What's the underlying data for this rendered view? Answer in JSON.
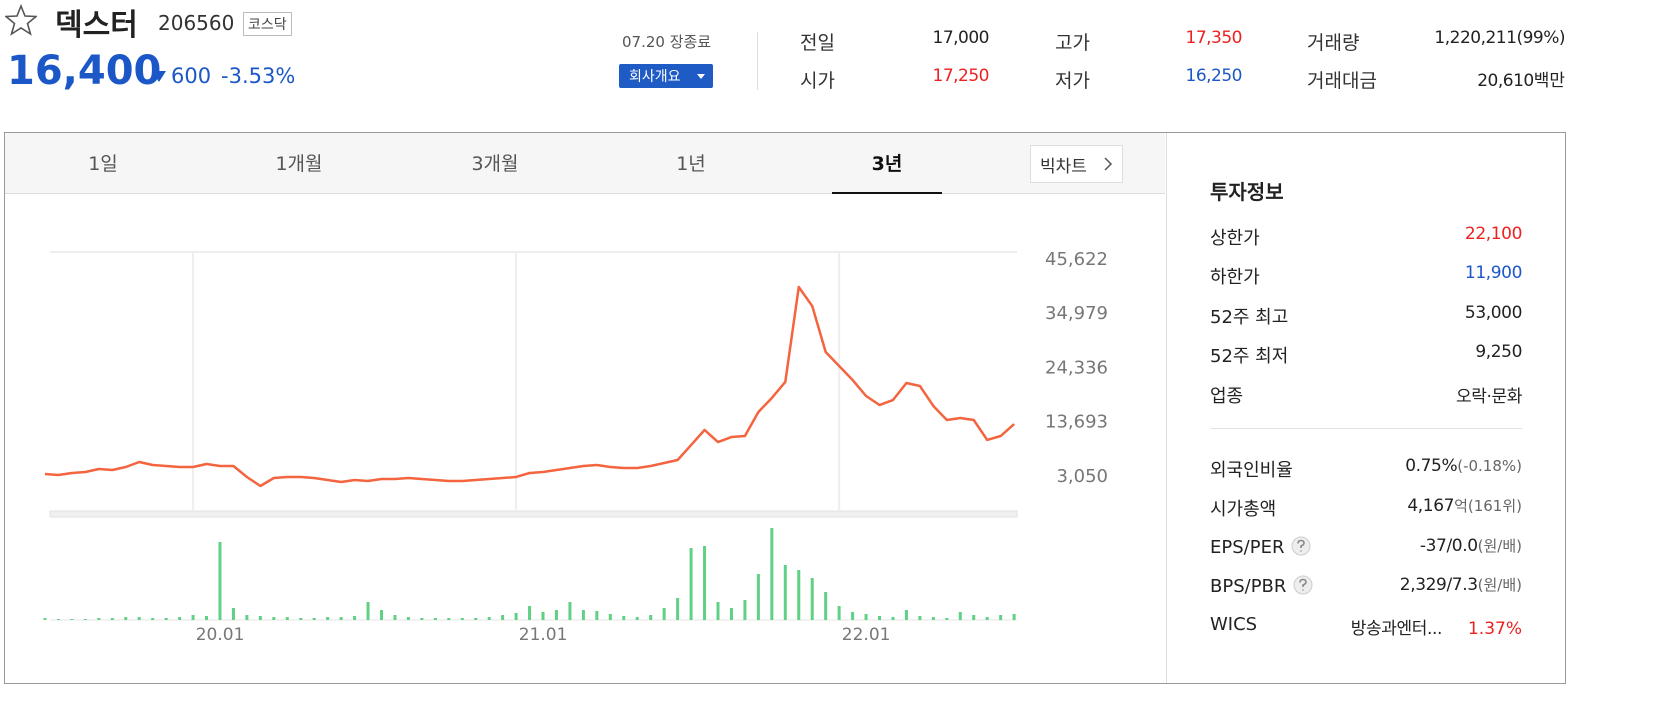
{
  "header": {
    "name": "덱스터",
    "code": "206560",
    "market": "코스닥",
    "price": "16,400",
    "change": "600",
    "change_rate": "-3.53%",
    "status": "07.20 장종료",
    "company_button": "회사개요",
    "color": "#1b57c7"
  },
  "summary": [
    {
      "label": "전일",
      "value": "17,000"
    },
    {
      "label": "시가",
      "value": "17,250",
      "color": "#ee2020"
    },
    {
      "label": "고가",
      "value": "17,350",
      "color": "#ee2020"
    },
    {
      "label": "저가",
      "value": "16,250",
      "color": "#1b57c7"
    },
    {
      "label": "거래량",
      "value": "1,220,211(99%)"
    },
    {
      "label": "거래대금",
      "value": "20,610",
      "unit": "백만"
    }
  ],
  "tabs": [
    "1일",
    "1개월",
    "3개월",
    "1년",
    "3년"
  ],
  "selected_tab": 4,
  "big_chart": "빅차트",
  "chart_data": {
    "type": "line",
    "color": "#f4643f",
    "categories": [
      null,
      null,
      null,
      null,
      null,
      null,
      null,
      null,
      null,
      null,
      null,
      "20.01",
      null,
      null,
      null,
      null,
      null,
      null,
      null,
      null,
      null,
      null,
      null,
      null,
      null,
      null,
      null,
      null,
      null,
      null,
      null,
      null,
      null,
      null,
      null,
      "21.01",
      null,
      null,
      null,
      null,
      null,
      null,
      null,
      null,
      null,
      null,
      null,
      null,
      null,
      null,
      null,
      null,
      null,
      null,
      null,
      null,
      null,
      null,
      null,
      "22.01",
      null,
      null,
      null,
      null,
      null,
      null,
      null,
      null,
      null,
      null,
      null,
      null,
      null
    ],
    "values": [
      3640,
      3440,
      3830,
      4030,
      4620,
      4420,
      5010,
      5990,
      5400,
      5200,
      5010,
      5010,
      5600,
      5200,
      5200,
      3050,
      1280,
      2850,
      3050,
      3050,
      2850,
      2460,
      2070,
      2460,
      2260,
      2660,
      2660,
      2850,
      2660,
      2460,
      2260,
      2260,
      2460,
      2660,
      2850,
      3050,
      3830,
      4030,
      4420,
      4810,
      5200,
      5400,
      5010,
      4810,
      4810,
      5200,
      5790,
      6380,
      9320,
      12270,
      9910,
      10890,
      11090,
      15800,
      18550,
      21690,
      40320,
      36590,
      27570,
      24820,
      22080,
      18940,
      17170,
      18150,
      21490,
      20900,
      16980,
      14230,
      14620,
      14230,
      10310,
      11090,
      13440
    ],
    "ylim": [
      -3428,
      47192
    ],
    "yticks": [
      {
        "value": 45622,
        "label": "45,622"
      },
      {
        "value": 34979,
        "label": "34,979"
      },
      {
        "value": 24336,
        "label": "24,336"
      },
      {
        "value": 13693,
        "label": "13,693"
      },
      {
        "value": 3050,
        "label": "3,050"
      }
    ],
    "xgrid": true,
    "volume_values": [
      2,
      1,
      1,
      1,
      2,
      2,
      3,
      3,
      2,
      2,
      3,
      5,
      4,
      78,
      12,
      5,
      4,
      3,
      3,
      2,
      2,
      3,
      3,
      4,
      18,
      10,
      5,
      3,
      2,
      2,
      2,
      2,
      2,
      3,
      5,
      7,
      14,
      8,
      10,
      18,
      10,
      9,
      6,
      4,
      3,
      5,
      12,
      22,
      72,
      74,
      18,
      12,
      20,
      46,
      92,
      55,
      50,
      42,
      28,
      14,
      8,
      6,
      4,
      3,
      10,
      4,
      3,
      2,
      8,
      5,
      3,
      5,
      6
    ],
    "volume_ylim": [
      0,
      100
    ],
    "volume_color": "#5fd084"
  },
  "invest_info": {
    "title": "투자정보",
    "rows": [
      {
        "label": "상한가",
        "value": "22,100",
        "color": "#ee2020"
      },
      {
        "label": "하한가",
        "value": "11,900",
        "color": "#1b57c7"
      },
      {
        "label": "52주 최고",
        "value": "53,000"
      },
      {
        "label": "52주 최저",
        "value": "9,250"
      },
      {
        "label": "업종",
        "value": "오락·문화"
      },
      {
        "label": "외국인비율",
        "value": "0.75%",
        "sub": "(-0.18%)"
      },
      {
        "label": "시가총액",
        "value": "4,167",
        "sub": "억(161위)"
      },
      {
        "label": "EPS/PER",
        "value": "-37/0.0",
        "sub": "(원/배)",
        "help": true
      },
      {
        "label": "BPS/PBR",
        "value": "2,329/7.3",
        "sub": "(원/배)",
        "help": true
      },
      {
        "label": "WICS",
        "value": "방송과엔터...",
        "sub": "1.37%",
        "sub_color": "#ee2020"
      }
    ]
  }
}
